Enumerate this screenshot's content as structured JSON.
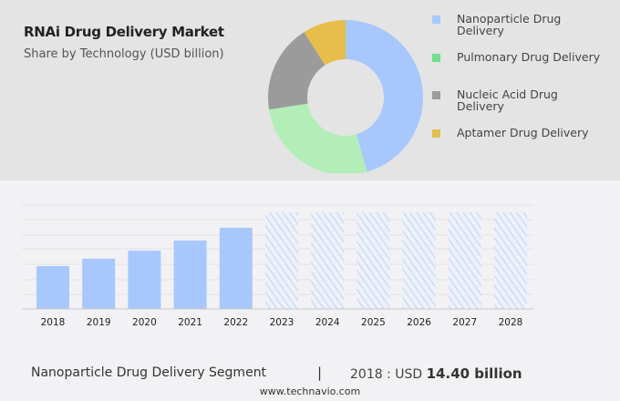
{
  "header": {
    "title": "RNAi Drug Delivery Market",
    "subtitle": "Share by Technology (USD billion)"
  },
  "chart_data": [
    {
      "type": "pie",
      "variant": "donut",
      "categories": [
        "Nanoparticle Drug Delivery",
        "Pulmonary Drug Delivery",
        "Nucleic Acid Drug Delivery",
        "Aptamer Drug Delivery"
      ],
      "values": [
        45.5,
        27,
        18.5,
        9
      ],
      "colors": [
        "#a8c8fd",
        "#b3eeb8",
        "#9b9b9b",
        "#e7bd4c"
      ],
      "legend_colors": [
        "#a8c8fd",
        "#6fe08e",
        "#9b9b9b",
        "#e0c050"
      ],
      "legend": "right"
    },
    {
      "type": "bar",
      "categories": [
        "2018",
        "2019",
        "2020",
        "2021",
        "2022",
        "2023",
        "2024",
        "2025",
        "2026",
        "2027",
        "2028"
      ],
      "values": [
        14.4,
        16.9,
        19.6,
        23.0,
        27.3,
        null,
        null,
        null,
        null,
        null,
        null
      ],
      "forecast_years": [
        "2023",
        "2024",
        "2025",
        "2026",
        "2027",
        "2028"
      ],
      "color": "#a8c8fd",
      "grid": true,
      "xlabel": "",
      "ylabel": ""
    }
  ],
  "footer": {
    "segment": "Nanoparticle Drug Delivery Segment",
    "separator": "|",
    "year_label": "2018 : USD ",
    "value": "14.40 billion",
    "website": "www.technavio.com"
  }
}
